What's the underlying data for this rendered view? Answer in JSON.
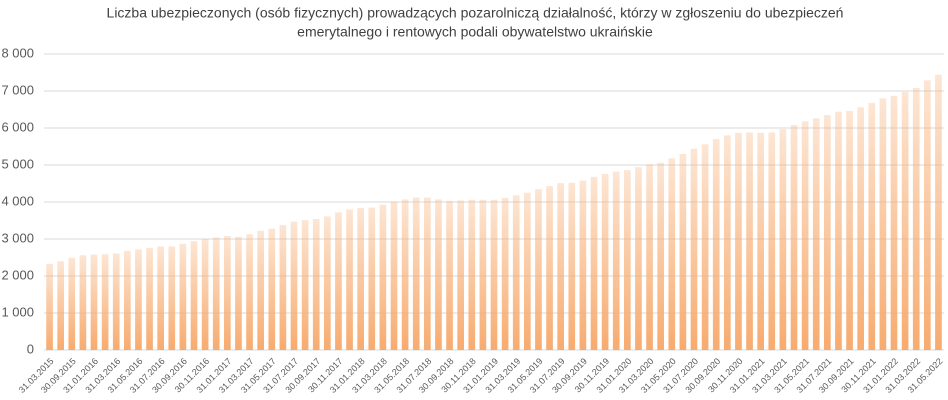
{
  "chart_data": {
    "type": "bar",
    "title": [
      "Liczba ubezpieczonych (osób fizycznych) prowadzących pozarolniczą działalność, którzy w zgłoszeniu do ubezpieczeń",
      "emerytalnego i rentowych podali obywatelstwo ukraińskie"
    ],
    "categories": [
      "31.03.2015",
      null,
      "30.09.2015",
      null,
      "31.01.2016",
      null,
      "31.03.2016",
      null,
      "31.05.2016",
      null,
      "31.07.2016",
      null,
      "30.09.2016",
      null,
      "30.11.2016",
      null,
      "31.01.2017",
      null,
      "31.03.2017",
      null,
      "31.05.2017",
      null,
      "31.07.2017",
      null,
      "30.09.2017",
      null,
      "30.11.2017",
      null,
      "31.01.2018",
      null,
      "31.03.2018",
      null,
      "31.05.2018",
      null,
      "31.07.2018",
      null,
      "30.09.2018",
      null,
      "30.11.2018",
      null,
      "31.01.2019",
      null,
      "31.03.2019",
      null,
      "31.05.2019",
      null,
      "31.07.2019",
      null,
      "30.09.2019",
      null,
      "30.11.2019",
      null,
      "31.01.2020",
      null,
      "31.03.2020",
      null,
      "31.05.2020",
      null,
      "31.07.2020",
      null,
      "30.09.2020",
      null,
      "30.11.2020",
      null,
      "31.01.2021",
      null,
      "31.03.2021",
      null,
      "31.05.2021",
      null,
      "31.07.2021",
      null,
      "30.09.2021",
      null,
      "30.11.2021",
      null,
      "31.01.2022",
      null,
      "31.03.2022",
      null,
      "31.05.2022"
    ],
    "values": [
      2330,
      2400,
      2490,
      2560,
      2580,
      2590,
      2610,
      2680,
      2720,
      2760,
      2800,
      2800,
      2870,
      2940,
      3000,
      3040,
      3080,
      3060,
      3130,
      3220,
      3280,
      3380,
      3470,
      3510,
      3540,
      3610,
      3720,
      3800,
      3840,
      3850,
      3930,
      4000,
      4070,
      4120,
      4120,
      4070,
      4030,
      4040,
      4060,
      4060,
      4060,
      4110,
      4180,
      4250,
      4350,
      4430,
      4510,
      4520,
      4580,
      4680,
      4760,
      4820,
      4860,
      4940,
      5020,
      5060,
      5180,
      5300,
      5440,
      5560,
      5700,
      5800,
      5870,
      5880,
      5870,
      5880,
      5970,
      6080,
      6180,
      6260,
      6350,
      6440,
      6460,
      6560,
      6680,
      6800,
      6870,
      6970,
      7080,
      7290,
      7440
    ],
    "color": "#f7ab6f",
    "ylim": [
      0,
      8000
    ],
    "yticks": [
      0,
      {
        "value": 1000,
        "label": "1 000"
      },
      {
        "value": 2000,
        "label": "2 000"
      },
      {
        "value": 3000,
        "label": "3 000"
      },
      {
        "value": 4000,
        "label": "4 000"
      },
      {
        "value": 5000,
        "label": "5 000"
      },
      {
        "value": 6000,
        "label": "6 000"
      },
      {
        "value": 7000,
        "label": "7 000"
      },
      {
        "value": 8000,
        "label": "8 000"
      }
    ],
    "grid": true
  }
}
